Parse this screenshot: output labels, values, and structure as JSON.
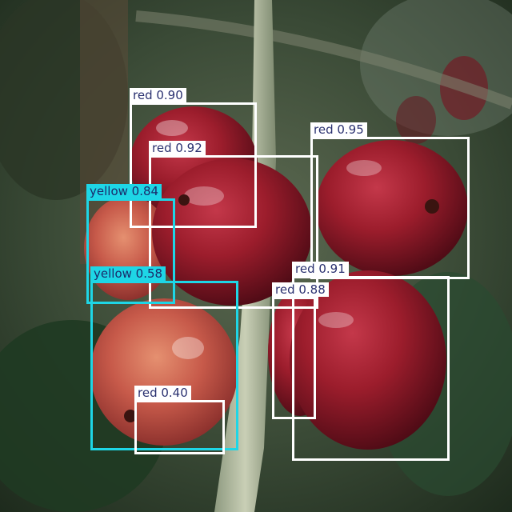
{
  "detections": [
    {
      "label": "red 0.90",
      "class": "red",
      "score": 0.9,
      "color": "#ffffff"
    },
    {
      "label": "red 0.92",
      "class": "red",
      "score": 0.92,
      "color": "#ffffff"
    },
    {
      "label": "red 0.95",
      "class": "red",
      "score": 0.95,
      "color": "#ffffff"
    },
    {
      "label": "yellow 0.84",
      "class": "yellow",
      "score": 0.84,
      "color": "#1ed6e6"
    },
    {
      "label": "yellow 0.58",
      "class": "yellow",
      "score": 0.58,
      "color": "#1ed6e6"
    },
    {
      "label": "red 0.91",
      "class": "red",
      "score": 0.91,
      "color": "#ffffff"
    },
    {
      "label": "red 0.88",
      "class": "red",
      "score": 0.88,
      "color": "#ffffff"
    },
    {
      "label": "red 0.40",
      "class": "red",
      "score": 0.4,
      "color": "#ffffff"
    }
  ]
}
